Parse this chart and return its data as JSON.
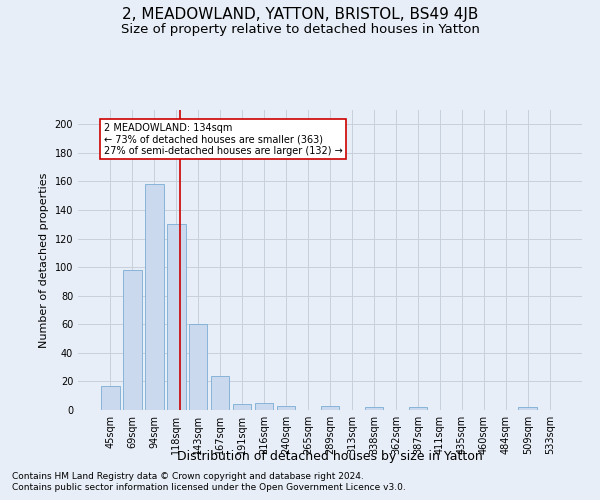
{
  "title": "2, MEADOWLAND, YATTON, BRISTOL, BS49 4JB",
  "subtitle": "Size of property relative to detached houses in Yatton",
  "xlabel": "Distribution of detached houses by size in Yatton",
  "ylabel": "Number of detached properties",
  "footer_line1": "Contains HM Land Registry data © Crown copyright and database right 2024.",
  "footer_line2": "Contains public sector information licensed under the Open Government Licence v3.0.",
  "categories": [
    "45sqm",
    "69sqm",
    "94sqm",
    "118sqm",
    "143sqm",
    "167sqm",
    "191sqm",
    "216sqm",
    "240sqm",
    "265sqm",
    "289sqm",
    "313sqm",
    "338sqm",
    "362sqm",
    "387sqm",
    "411sqm",
    "435sqm",
    "460sqm",
    "484sqm",
    "509sqm",
    "533sqm"
  ],
  "values": [
    17,
    98,
    158,
    130,
    60,
    24,
    4,
    5,
    3,
    0,
    3,
    0,
    2,
    0,
    2,
    0,
    0,
    0,
    0,
    2,
    0
  ],
  "bar_color": "#cad9ee",
  "bar_edge_color": "#7aadd4",
  "grid_color": "#c8d0dc",
  "background_color": "#e8eef7",
  "vline_x_idx": 3.18,
  "vline_color": "#cc0000",
  "annotation_line1": "2 MEADOWLAND: 134sqm",
  "annotation_line2": "← 73% of detached houses are smaller (363)",
  "annotation_line3": "27% of semi-detached houses are larger (132) →",
  "annotation_box_color": "white",
  "annotation_box_edge": "#cc0000",
  "ylim": [
    0,
    210
  ],
  "yticks": [
    0,
    20,
    40,
    60,
    80,
    100,
    120,
    140,
    160,
    180,
    200
  ],
  "title_fontsize": 11,
  "subtitle_fontsize": 9.5,
  "ylabel_fontsize": 8,
  "xlabel_fontsize": 9,
  "tick_fontsize": 7,
  "footer_fontsize": 6.5
}
